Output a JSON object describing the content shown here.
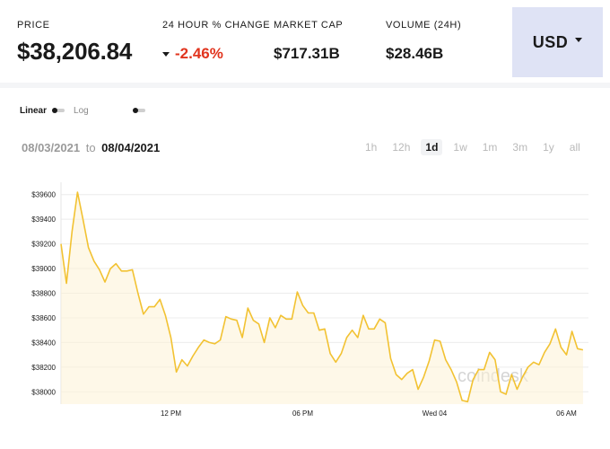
{
  "stats": {
    "price": {
      "label": "PRICE",
      "value": "$38,206.84"
    },
    "change": {
      "label": "24 HOUR % CHANGE",
      "value": "-2.46%"
    },
    "market_cap": {
      "label": "MARKET CAP",
      "value": "$717.31B"
    },
    "volume": {
      "label": "VOLUME (24H)",
      "value": "$28.46B"
    }
  },
  "currency": {
    "label": "USD"
  },
  "scale": {
    "linear_label": "Linear",
    "log_label": "Log"
  },
  "date_range": {
    "from": "08/03/2021",
    "to_word": "to",
    "to": "08/04/2021"
  },
  "range_tabs": [
    {
      "label": "1h",
      "active": false
    },
    {
      "label": "12h",
      "active": false
    },
    {
      "label": "1d",
      "active": true
    },
    {
      "label": "1w",
      "active": false
    },
    {
      "label": "1m",
      "active": false
    },
    {
      "label": "3m",
      "active": false
    },
    {
      "label": "1y",
      "active": false
    },
    {
      "label": "all",
      "active": false
    }
  ],
  "watermark": "coindesk",
  "colors": {
    "line": "#f2c232",
    "fill": "#fdf3d6",
    "negative": "#e1341e",
    "accent_bg": "#dfe3f5"
  },
  "chart_data": {
    "type": "area",
    "ylim": [
      37900,
      39700
    ],
    "xlim": [
      0,
      24
    ],
    "y_ticks": [
      {
        "value": 38000,
        "label": "$38000"
      },
      {
        "value": 38200,
        "label": "$38200"
      },
      {
        "value": 38400,
        "label": "$38400"
      },
      {
        "value": 38600,
        "label": "$38600"
      },
      {
        "value": 38800,
        "label": "$38800"
      },
      {
        "value": 39000,
        "label": "$39000"
      },
      {
        "value": 39200,
        "label": "$39200"
      },
      {
        "value": 39400,
        "label": "$39400"
      },
      {
        "value": 39600,
        "label": "$39600"
      }
    ],
    "x_ticks": [
      {
        "value": 5,
        "label": "12 PM"
      },
      {
        "value": 11,
        "label": "06 PM"
      },
      {
        "value": 17,
        "label": "Wed 04"
      },
      {
        "value": 23,
        "label": "06 AM"
      }
    ],
    "x": [
      0,
      0.25,
      0.5,
      0.75,
      1,
      1.25,
      1.5,
      1.75,
      2,
      2.25,
      2.5,
      2.75,
      3,
      3.25,
      3.5,
      3.75,
      4,
      4.25,
      4.5,
      4.75,
      5,
      5.25,
      5.5,
      5.75,
      6,
      6.25,
      6.5,
      6.75,
      7,
      7.25,
      7.5,
      7.75,
      8,
      8.25,
      8.5,
      8.75,
      9,
      9.25,
      9.5,
      9.75,
      10,
      10.25,
      10.5,
      10.75,
      11,
      11.25,
      11.5,
      11.75,
      12,
      12.25,
      12.5,
      12.75,
      13,
      13.25,
      13.5,
      13.75,
      14,
      14.25,
      14.5,
      14.75,
      15,
      15.25,
      15.5,
      15.75,
      16,
      16.25,
      16.5,
      16.75,
      17,
      17.25,
      17.5,
      17.75,
      18,
      18.25,
      18.5,
      18.75,
      19,
      19.25,
      19.5,
      19.75,
      20,
      20.25,
      20.5,
      20.75,
      21,
      21.25,
      21.5,
      21.75,
      22,
      22.25,
      22.5,
      22.75,
      23,
      23.25,
      23.5,
      23.75
    ],
    "values": [
      39200,
      38880,
      39300,
      39620,
      39400,
      39170,
      39060,
      38990,
      38890,
      39000,
      39040,
      38980,
      38980,
      38990,
      38800,
      38630,
      38690,
      38690,
      38750,
      38620,
      38440,
      38160,
      38260,
      38210,
      38290,
      38360,
      38420,
      38400,
      38390,
      38420,
      38610,
      38590,
      38580,
      38440,
      38680,
      38580,
      38550,
      38400,
      38600,
      38520,
      38620,
      38590,
      38590,
      38810,
      38700,
      38640,
      38640,
      38500,
      38510,
      38310,
      38240,
      38310,
      38440,
      38500,
      38440,
      38620,
      38510,
      38510,
      38590,
      38560,
      38270,
      38140,
      38100,
      38150,
      38180,
      38020,
      38120,
      38250,
      38420,
      38410,
      38260,
      38180,
      38080,
      37930,
      37920,
      38100,
      38180,
      38180,
      38320,
      38260,
      38000,
      37980,
      38140,
      38020,
      38120,
      38200,
      38240,
      38220,
      38320,
      38390,
      38510,
      38360,
      38300,
      38490,
      38350,
      38340
    ]
  }
}
